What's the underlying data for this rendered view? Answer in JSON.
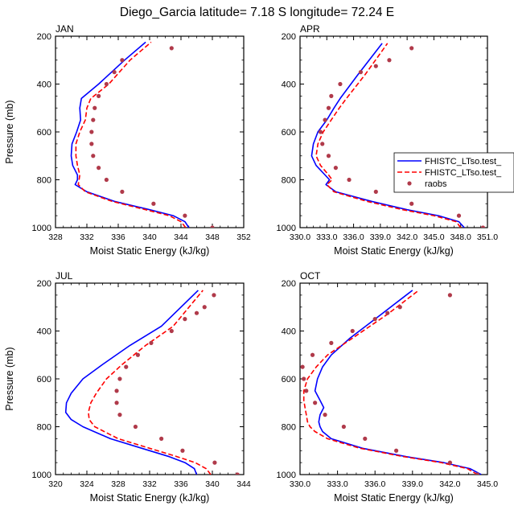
{
  "title": "Diego_Garcia  latitude= 7.18 S longitude= 72.24 E",
  "colors": {
    "model1": "#0000ff",
    "model2": "#ff0000",
    "raobs": "#b03a4a",
    "axis": "#000000"
  },
  "chart_data": [
    {
      "type": "line",
      "panel": "JAN",
      "title": "JAN",
      "xlabel": "Moist Static Energy (kJ/kg)",
      "ylabel": "Pressure (mb)",
      "xlim": [
        328,
        352
      ],
      "ylim": [
        1000,
        200
      ],
      "xticks": [
        328,
        332,
        336,
        340,
        344,
        348,
        352
      ],
      "xtick_labels": [
        "328",
        "332",
        "336",
        "340",
        "344",
        "348",
        "352"
      ],
      "yticks": [
        200,
        400,
        600,
        800,
        1000
      ],
      "ytick_labels": [
        "200",
        "400",
        "600",
        "800",
        "1000"
      ],
      "show_ylabel": true,
      "show_legend": false,
      "series": [
        {
          "name": "FHISTC_LTso.test_",
          "style": "solid",
          "color": "#0000ff",
          "x": [
            345.0,
            344.5,
            343.0,
            340.0,
            335.5,
            332.0,
            330.5,
            330.8,
            330.8,
            330.2,
            330.0,
            330.1,
            330.7,
            331.2,
            331.1,
            331.3,
            333.5,
            336.8,
            339.5
          ],
          "y": [
            1000,
            975,
            950,
            925,
            890,
            850,
            820,
            800,
            780,
            740,
            700,
            650,
            600,
            550,
            500,
            460,
            400,
            300,
            225
          ]
        },
        {
          "name": "FHISTC_LTso.test_",
          "style": "dashed",
          "color": "#ff0000",
          "x": [
            344.6,
            344.0,
            342.5,
            339.5,
            335.2,
            331.8,
            330.9,
            331.0,
            331.1,
            330.8,
            330.6,
            330.6,
            331.1,
            331.8,
            332.0,
            332.5,
            334.8,
            337.5,
            340.2
          ],
          "y": [
            1000,
            975,
            950,
            925,
            890,
            850,
            820,
            800,
            780,
            740,
            700,
            650,
            600,
            550,
            500,
            460,
            400,
            300,
            225
          ]
        },
        {
          "name": "raobs",
          "style": "markers",
          "color": "#b03a4a",
          "x": [
            348.0,
            344.5,
            340.5,
            336.5,
            334.5,
            333.5,
            332.8,
            332.6,
            332.6,
            332.8,
            333.0,
            333.5,
            334.5,
            335.5,
            336.5,
            342.8
          ],
          "y": [
            1000,
            950,
            900,
            850,
            800,
            750,
            700,
            650,
            600,
            550,
            500,
            450,
            400,
            350,
            300,
            250
          ]
        }
      ]
    },
    {
      "type": "line",
      "panel": "APR",
      "title": "APR",
      "xlabel": "Moist Static Energy (kJ/kg)",
      "ylabel": "",
      "xlim": [
        330,
        351
      ],
      "ylim": [
        1000,
        200
      ],
      "xticks": [
        330,
        333,
        336,
        339,
        342,
        345,
        348,
        351
      ],
      "xtick_labels": [
        "330.0",
        "333.0",
        "336.0",
        "339.0",
        "342.0",
        "345.0",
        "348.0",
        "351.0"
      ],
      "yticks": [
        200,
        400,
        600,
        800,
        1000
      ],
      "ytick_labels": [
        "200",
        "400",
        "600",
        "800",
        "1000"
      ],
      "show_ylabel": false,
      "show_legend": true,
      "series": [
        {
          "name": "FHISTC_LTso.test_",
          "style": "solid",
          "color": "#0000ff",
          "x": [
            348.4,
            347.8,
            345.5,
            342.0,
            338.0,
            334.0,
            332.9,
            333.3,
            332.8,
            331.8,
            331.3,
            331.5,
            332.0,
            333.0,
            333.8,
            334.5,
            336.5,
            339.2
          ],
          "y": [
            1000,
            975,
            950,
            925,
            890,
            850,
            820,
            800,
            780,
            740,
            700,
            650,
            600,
            550,
            500,
            460,
            360,
            230
          ]
        },
        {
          "name": "FHISTC_LTso.test_",
          "style": "dashed",
          "color": "#ff0000",
          "x": [
            348.0,
            347.5,
            345.0,
            341.5,
            337.5,
            333.8,
            333.0,
            333.6,
            333.2,
            332.3,
            331.8,
            332.0,
            332.6,
            333.5,
            334.4,
            335.2,
            337.3,
            339.8
          ],
          "y": [
            1000,
            975,
            950,
            925,
            890,
            850,
            820,
            800,
            780,
            740,
            700,
            650,
            600,
            550,
            500,
            460,
            360,
            230
          ]
        },
        {
          "name": "raobs",
          "style": "markers",
          "color": "#b03a4a",
          "x": [
            350.5,
            347.8,
            342.5,
            338.5,
            335.5,
            334.0,
            333.2,
            332.5,
            332.3,
            332.8,
            333.2,
            333.5,
            334.5,
            336.8,
            338.5,
            340.0,
            342.5
          ],
          "y": [
            1000,
            950,
            900,
            850,
            800,
            750,
            700,
            650,
            600,
            550,
            500,
            450,
            400,
            350,
            325,
            300,
            250
          ]
        }
      ],
      "legend": {
        "placement": "right",
        "entries": [
          {
            "label": "FHISTC_LTso.test_",
            "style": "solid",
            "color": "#0000ff"
          },
          {
            "label": "FHISTC_LTso.test_",
            "style": "dashed",
            "color": "#ff0000"
          },
          {
            "label": "raobs",
            "style": "markers",
            "color": "#b03a4a"
          }
        ]
      }
    },
    {
      "type": "line",
      "panel": "JUL",
      "title": "JUL",
      "xlabel": "Moist Static Energy (kJ/kg)",
      "ylabel": "Pressure (mb)",
      "xlim": [
        320,
        344
      ],
      "ylim": [
        1000,
        200
      ],
      "xticks": [
        320,
        324,
        328,
        332,
        336,
        340,
        344
      ],
      "xtick_labels": [
        "320",
        "324",
        "328",
        "332",
        "336",
        "340",
        "344"
      ],
      "yticks": [
        200,
        400,
        600,
        800,
        1000
      ],
      "ytick_labels": [
        "200",
        "400",
        "600",
        "800",
        "1000"
      ],
      "show_ylabel": true,
      "show_legend": false,
      "series": [
        {
          "name": "FHISTC_LTso.test_",
          "style": "solid",
          "color": "#0000ff",
          "x": [
            338.0,
            337.7,
            336.5,
            334.5,
            331.0,
            327.0,
            323.5,
            322.0,
            321.3,
            321.4,
            322.0,
            323.5,
            326.0,
            329.5,
            333.5,
            338.2
          ],
          "y": [
            1000,
            975,
            950,
            925,
            890,
            850,
            800,
            770,
            740,
            700,
            660,
            600,
            540,
            460,
            380,
            230
          ]
        },
        {
          "name": "FHISTC_LTso.test_",
          "style": "dashed",
          "color": "#ff0000",
          "x": [
            339.8,
            339.2,
            337.8,
            335.5,
            332.0,
            328.0,
            325.0,
            324.3,
            324.2,
            324.5,
            325.2,
            326.5,
            328.5,
            331.5,
            335.0,
            338.8
          ],
          "y": [
            1000,
            975,
            950,
            925,
            890,
            850,
            800,
            770,
            740,
            700,
            660,
            600,
            540,
            460,
            380,
            230
          ]
        },
        {
          "name": "raobs",
          "style": "markers",
          "color": "#b03a4a",
          "x": [
            343.2,
            340.3,
            336.2,
            333.5,
            330.2,
            328.2,
            327.8,
            327.8,
            328.2,
            329.0,
            330.5,
            332.2,
            334.8,
            336.5,
            338.0,
            339.0,
            340.2
          ],
          "y": [
            1000,
            950,
            900,
            850,
            800,
            750,
            700,
            650,
            600,
            550,
            500,
            450,
            400,
            350,
            325,
            300,
            250
          ]
        }
      ]
    },
    {
      "type": "line",
      "panel": "OCT",
      "title": "OCT",
      "xlabel": "Moist Static Energy (kJ/kg)",
      "ylabel": "",
      "xlim": [
        330,
        345
      ],
      "ylim": [
        1000,
        200
      ],
      "xticks": [
        330,
        333,
        336,
        339,
        342,
        345
      ],
      "xtick_labels": [
        "330.0",
        "333.0",
        "336.0",
        "339.0",
        "342.0",
        "345.0"
      ],
      "yticks": [
        200,
        400,
        600,
        800,
        1000
      ],
      "ytick_labels": [
        "200",
        "400",
        "600",
        "800",
        "1000"
      ],
      "show_ylabel": false,
      "show_legend": false,
      "series": [
        {
          "name": "FHISTC_LTso.test_",
          "style": "solid",
          "color": "#0000ff",
          "x": [
            344.5,
            343.6,
            341.5,
            338.5,
            335.0,
            332.5,
            331.8,
            331.6,
            331.5,
            331.6,
            331.9,
            331.6,
            331.2,
            331.4,
            331.8,
            332.5,
            334.0,
            336.5,
            339.0
          ],
          "y": [
            1000,
            975,
            950,
            925,
            890,
            850,
            820,
            800,
            780,
            750,
            720,
            690,
            650,
            600,
            550,
            500,
            430,
            330,
            230
          ]
        },
        {
          "name": "FHISTC_LTso.test_",
          "style": "dashed",
          "color": "#ff0000",
          "x": [
            344.2,
            343.4,
            341.3,
            338.3,
            334.8,
            332.2,
            331.2,
            330.8,
            330.6,
            330.5,
            330.4,
            330.3,
            330.3,
            330.6,
            331.3,
            332.2,
            334.2,
            337.0,
            339.5
          ],
          "y": [
            1000,
            975,
            950,
            925,
            890,
            850,
            820,
            800,
            780,
            750,
            720,
            690,
            650,
            600,
            550,
            500,
            430,
            330,
            230
          ]
        },
        {
          "name": "raobs",
          "style": "markers",
          "color": "#b03a4a",
          "x": [
            344.2,
            342.0,
            337.7,
            335.2,
            333.5,
            332.0,
            331.2,
            330.5,
            330.3,
            330.2,
            331.0,
            332.5,
            334.2,
            336.0,
            337.0,
            338.0,
            342.0
          ],
          "y": [
            1000,
            950,
            900,
            850,
            800,
            750,
            700,
            650,
            600,
            550,
            500,
            450,
            400,
            350,
            325,
            300,
            250
          ]
        }
      ]
    }
  ]
}
